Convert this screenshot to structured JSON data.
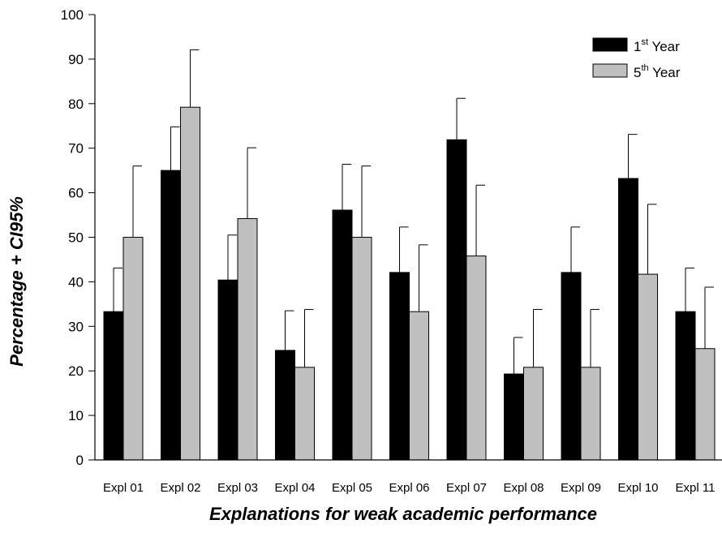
{
  "chart_data": {
    "type": "bar",
    "xlabel": "Explanations for weak academic performance",
    "ylabel": "Percentage + CI95%",
    "ylim": [
      0,
      100
    ],
    "yticks": [
      0,
      10,
      20,
      30,
      40,
      50,
      60,
      70,
      80,
      90,
      100
    ],
    "grid": false,
    "legend_position": "top-right",
    "categories": [
      "Expl 01",
      "Expl 02",
      "Expl 03",
      "Expl 04",
      "Expl 05",
      "Expl 06",
      "Expl 07",
      "Expl 08",
      "Expl 09",
      "Expl 10",
      "Expl 11"
    ],
    "series": [
      {
        "name": "1st Year",
        "legend_base": "1",
        "legend_sup": "st",
        "legend_rest": " Year",
        "color": "#000000",
        "values": [
          33.3,
          65,
          40.4,
          24.6,
          56.1,
          42.1,
          71.9,
          19.3,
          42.1,
          63.2,
          33.3
        ],
        "ci_upper": [
          43.1,
          74.8,
          50.5,
          33.5,
          66.4,
          52.3,
          81.2,
          27.5,
          52.3,
          73.1,
          43.1
        ]
      },
      {
        "name": "5th Year",
        "legend_base": "5",
        "legend_sup": "th",
        "legend_rest": " Year",
        "color": "#c0c0c0",
        "values": [
          50,
          79.2,
          54.2,
          20.8,
          50,
          33.3,
          45.8,
          20.8,
          20.8,
          41.7,
          25
        ],
        "ci_upper": [
          66,
          92.1,
          70.1,
          33.8,
          66,
          48.3,
          61.7,
          33.8,
          33.8,
          57.4,
          38.8
        ]
      }
    ]
  }
}
